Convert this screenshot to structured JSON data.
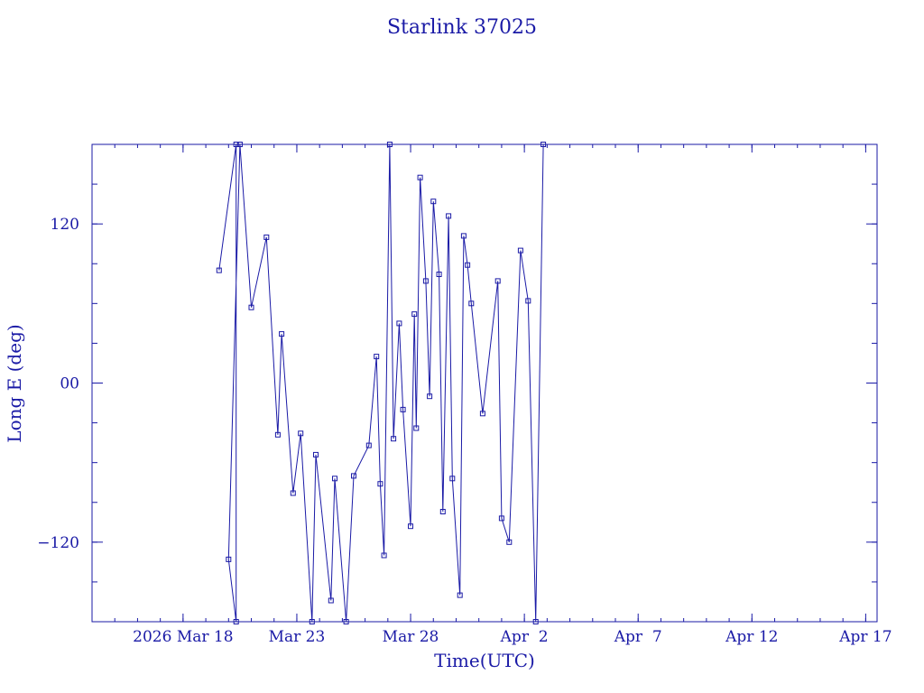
{
  "chart_data": {
    "type": "line",
    "title": "Starlink 37025",
    "xlabel": "Time(UTC)",
    "ylabel": "Long E (deg)",
    "xlim": [
      "2026-03-14T00:00",
      "2026-04-17T12:00"
    ],
    "ylim": [
      -180,
      180
    ],
    "x_ticks": [
      "2026-03-18",
      "2026-03-23",
      "2026-03-28",
      "2026-04-02",
      "2026-04-07",
      "2026-04-12",
      "2026-04-17"
    ],
    "x_tick_labels": [
      "2026 Mar 18",
      "Mar 23",
      "Mar 28",
      "Apr  2",
      "Apr  7",
      "Apr 12",
      "Apr 17"
    ],
    "y_ticks": [
      -120,
      0,
      120
    ],
    "y_tick_labels": [
      "−120",
      "00",
      "120"
    ],
    "grid": false,
    "color": "#1a1aa6",
    "series": [
      {
        "values": [
          [
            "2026-03-19T14:00",
            85
          ],
          [
            "2026-03-20T08:00",
            180
          ],
          [
            "2026-03-20T08:00",
            -180
          ],
          [
            "2026-03-20T00:00",
            -133
          ],
          [
            "2026-03-20T12:00",
            180
          ],
          [
            "2026-03-21T00:00",
            57
          ],
          [
            "2026-03-21T16:00",
            110
          ],
          [
            "2026-03-22T04:00",
            -39
          ],
          [
            "2026-03-22T08:00",
            37
          ],
          [
            "2026-03-22T20:00",
            -83
          ],
          [
            "2026-03-23T04:00",
            -38
          ],
          [
            "2026-03-23T16:00",
            -180
          ],
          [
            "2026-03-23T20:00",
            -54
          ],
          [
            "2026-03-24T12:00",
            -164
          ],
          [
            "2026-03-24T16:00",
            -72
          ],
          [
            "2026-03-25T04:00",
            -180
          ],
          [
            "2026-03-25T12:00",
            -70
          ],
          [
            "2026-03-26T04:00",
            -47
          ],
          [
            "2026-03-26T12:00",
            20
          ],
          [
            "2026-03-26T16:00",
            -76
          ],
          [
            "2026-03-26T20:00",
            -130
          ],
          [
            "2026-03-27T02:00",
            180
          ],
          [
            "2026-03-27T06:00",
            -42
          ],
          [
            "2026-03-27T12:00",
            45
          ],
          [
            "2026-03-27T16:00",
            -20
          ],
          [
            "2026-03-28T00:00",
            -108
          ],
          [
            "2026-03-28T04:00",
            52
          ],
          [
            "2026-03-28T06:00",
            -34
          ],
          [
            "2026-03-28T10:00",
            155
          ],
          [
            "2026-03-28T16:00",
            77
          ],
          [
            "2026-03-28T20:00",
            -10
          ],
          [
            "2026-03-29T00:00",
            137
          ],
          [
            "2026-03-29T06:00",
            82
          ],
          [
            "2026-03-29T10:00",
            -97
          ],
          [
            "2026-03-29T16:00",
            126
          ],
          [
            "2026-03-29T20:00",
            -72
          ],
          [
            "2026-03-30T04:00",
            -160
          ],
          [
            "2026-03-30T08:00",
            111
          ],
          [
            "2026-03-30T12:00",
            89
          ],
          [
            "2026-03-30T16:00",
            60
          ],
          [
            "2026-03-31T04:00",
            -23
          ],
          [
            "2026-03-31T20:00",
            77
          ],
          [
            "2026-04-01T00:00",
            -102
          ],
          [
            "2026-04-01T08:00",
            -120
          ],
          [
            "2026-04-01T20:00",
            100
          ],
          [
            "2026-04-02T04:00",
            62
          ],
          [
            "2026-04-02T12:00",
            -180
          ],
          [
            "2026-04-02T20:00",
            180
          ]
        ]
      }
    ]
  }
}
